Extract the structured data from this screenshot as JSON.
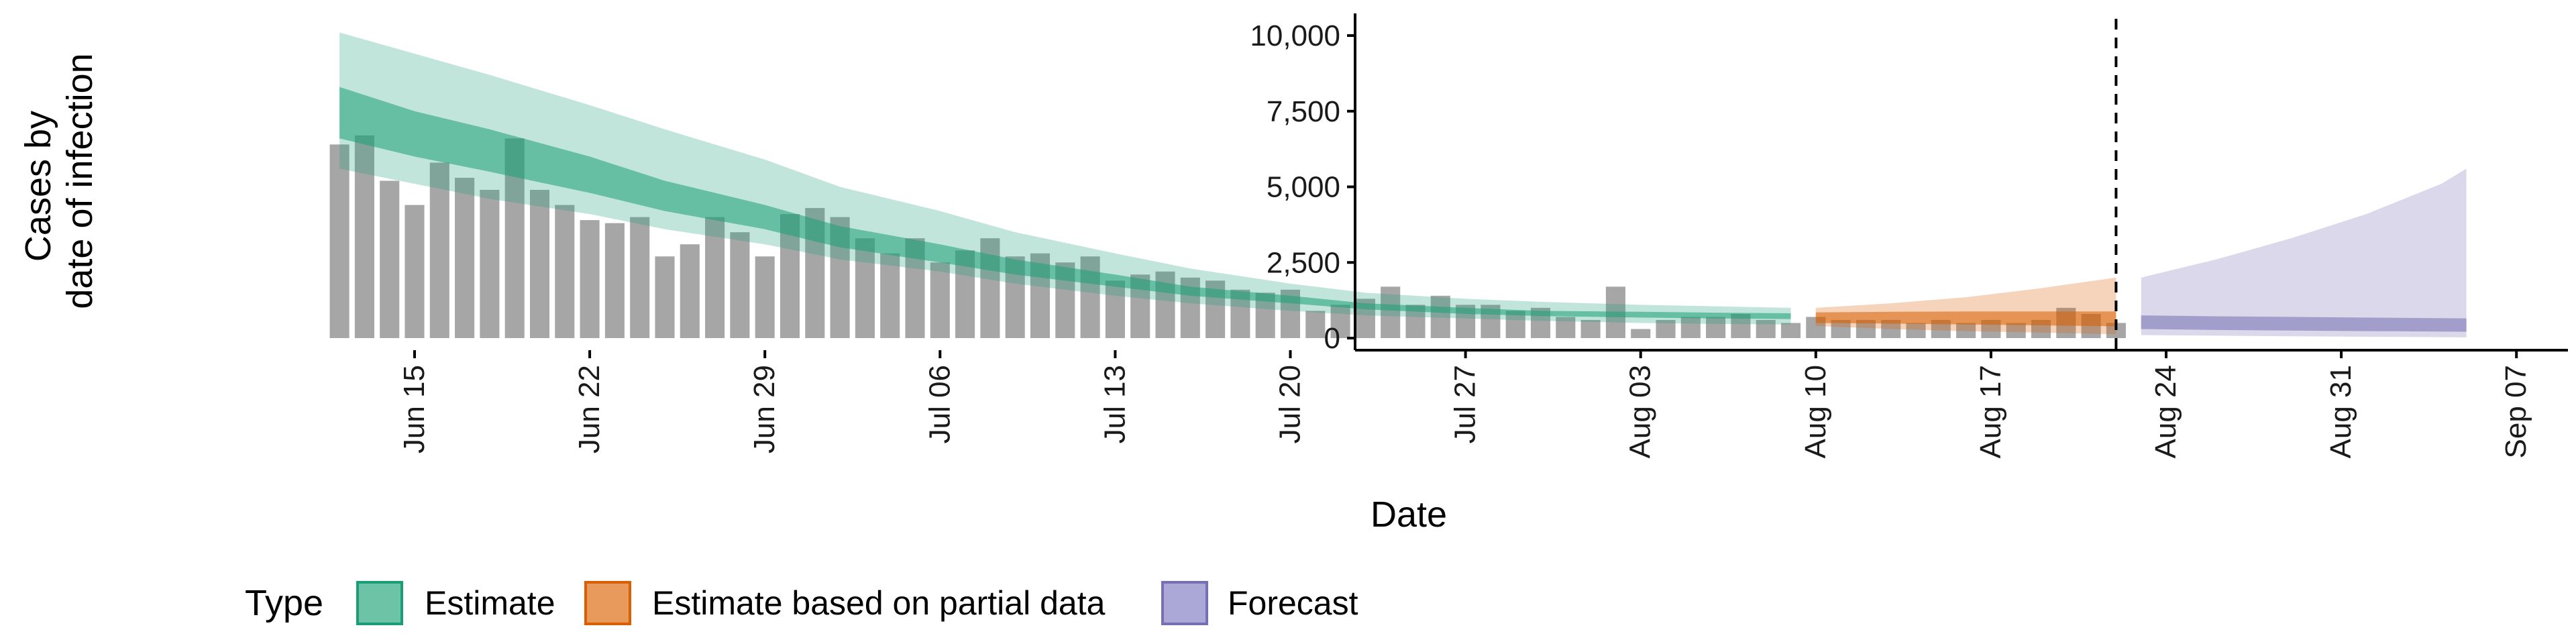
{
  "chart_data": {
    "type": "area",
    "xlabel": "Date",
    "ylabel_lines": [
      "Cases by",
      "date of infection"
    ],
    "x_start": "2020-06-11",
    "ylim": [
      0,
      10500
    ],
    "y_ticks": [
      0,
      2500,
      5000,
      7500,
      10000
    ],
    "y_tick_labels": [
      "0",
      "2,500",
      "5,000",
      "7,500",
      "10,000"
    ],
    "x_ticks": [
      "2020-06-15",
      "2020-06-22",
      "2020-06-29",
      "2020-07-06",
      "2020-07-13",
      "2020-07-20",
      "2020-07-27",
      "2020-08-03",
      "2020-08-10",
      "2020-08-17",
      "2020-08-24",
      "2020-08-31",
      "2020-09-07"
    ],
    "x_tick_labels": [
      "Jun 15",
      "Jun 22",
      "Jun 29",
      "Jul 06",
      "Jul 13",
      "Jul 20",
      "Jul 27",
      "Aug 03",
      "Aug 10",
      "Aug 17",
      "Aug 24",
      "Aug 31",
      "Sep 07"
    ],
    "vline_date": "2020-08-22",
    "legend": {
      "title": "Type",
      "items": [
        {
          "label": "Estimate",
          "fill": "#6cc3a6",
          "stroke": "#1b9e77"
        },
        {
          "label": "Estimate based on partial data",
          "fill": "#e89a5c",
          "stroke": "#d95f02"
        },
        {
          "label": "Forecast",
          "fill": "#aba8d8",
          "stroke": "#7570b3"
        }
      ]
    },
    "bars": {
      "color": "#a6a6a6",
      "dates": [
        "2020-06-12",
        "2020-06-13",
        "2020-06-14",
        "2020-06-15",
        "2020-06-16",
        "2020-06-17",
        "2020-06-18",
        "2020-06-19",
        "2020-06-20",
        "2020-06-21",
        "2020-06-22",
        "2020-06-23",
        "2020-06-24",
        "2020-06-25",
        "2020-06-26",
        "2020-06-27",
        "2020-06-28",
        "2020-06-29",
        "2020-06-30",
        "2020-07-01",
        "2020-07-02",
        "2020-07-03",
        "2020-07-04",
        "2020-07-05",
        "2020-07-06",
        "2020-07-07",
        "2020-07-08",
        "2020-07-09",
        "2020-07-10",
        "2020-07-11",
        "2020-07-12",
        "2020-07-13",
        "2020-07-14",
        "2020-07-15",
        "2020-07-16",
        "2020-07-17",
        "2020-07-18",
        "2020-07-19",
        "2020-07-20",
        "2020-07-21",
        "2020-07-22",
        "2020-07-23",
        "2020-07-24",
        "2020-07-25",
        "2020-07-26",
        "2020-07-27",
        "2020-07-28",
        "2020-07-29",
        "2020-07-30",
        "2020-07-31",
        "2020-08-01",
        "2020-08-02",
        "2020-08-03",
        "2020-08-04",
        "2020-08-05",
        "2020-08-06",
        "2020-08-07",
        "2020-08-08",
        "2020-08-09",
        "2020-08-10",
        "2020-08-11",
        "2020-08-12",
        "2020-08-13",
        "2020-08-14",
        "2020-08-15",
        "2020-08-16",
        "2020-08-17",
        "2020-08-18",
        "2020-08-19",
        "2020-08-20",
        "2020-08-21",
        "2020-08-22"
      ],
      "values": [
        6400,
        6700,
        5200,
        4400,
        5800,
        5300,
        4900,
        6600,
        4900,
        4400,
        3900,
        3800,
        4000,
        2700,
        3100,
        4000,
        3500,
        2700,
        4100,
        4300,
        4000,
        3300,
        2800,
        3300,
        2500,
        2900,
        3300,
        2700,
        2800,
        2500,
        2700,
        1900,
        2100,
        2200,
        2000,
        1900,
        1600,
        1500,
        1600,
        900,
        1100,
        1300,
        1700,
        1100,
        1400,
        1100,
        1100,
        900,
        1000,
        700,
        600,
        1700,
        300,
        600,
        700,
        700,
        800,
        600,
        500,
        700,
        600,
        600,
        600,
        500,
        600,
        500,
        600,
        500,
        600,
        1000,
        800,
        500
      ]
    },
    "series": [
      {
        "name": "Estimate",
        "fill": "#1b9e77",
        "x": [
          "2020-06-12",
          "2020-06-15",
          "2020-06-18",
          "2020-06-22",
          "2020-06-25",
          "2020-06-29",
          "2020-07-02",
          "2020-07-06",
          "2020-07-09",
          "2020-07-13",
          "2020-07-16",
          "2020-07-20",
          "2020-07-23",
          "2020-07-27",
          "2020-07-30",
          "2020-08-03",
          "2020-08-06",
          "2020-08-09"
        ],
        "outer_upper": [
          10100,
          9400,
          8700,
          7700,
          6900,
          5900,
          5000,
          4200,
          3500,
          2800,
          2300,
          1800,
          1500,
          1300,
          1200,
          1100,
          1050,
          1000
        ],
        "outer_lower": [
          5600,
          5100,
          4600,
          4100,
          3600,
          3100,
          2600,
          2200,
          1800,
          1400,
          1150,
          900,
          750,
          650,
          570,
          500,
          470,
          450
        ],
        "inner_upper": [
          8300,
          7500,
          6900,
          6000,
          5200,
          4400,
          3700,
          3100,
          2600,
          2100,
          1700,
          1400,
          1150,
          1000,
          900,
          870,
          840,
          820
        ],
        "inner_lower": [
          6600,
          6000,
          5500,
          4800,
          4200,
          3600,
          3000,
          2500,
          2100,
          1700,
          1400,
          1150,
          950,
          800,
          730,
          680,
          650,
          630
        ]
      },
      {
        "name": "Estimate based on partial data",
        "fill": "#d95f02",
        "x": [
          "2020-08-10",
          "2020-08-13",
          "2020-08-16",
          "2020-08-19",
          "2020-08-22"
        ],
        "outer_upper": [
          1000,
          1150,
          1350,
          1650,
          2000
        ],
        "outer_lower": [
          400,
          300,
          230,
          180,
          130
        ],
        "inner_upper": [
          850,
          870,
          880,
          880,
          880
        ],
        "inner_lower": [
          500,
          480,
          450,
          420,
          390
        ]
      },
      {
        "name": "Forecast",
        "fill": "#7570b3",
        "x": [
          "2020-08-23",
          "2020-08-26",
          "2020-08-29",
          "2020-09-01",
          "2020-09-04",
          "2020-09-05"
        ],
        "outer_upper": [
          2000,
          2600,
          3300,
          4100,
          5100,
          5600
        ],
        "outer_lower": [
          100,
          80,
          60,
          45,
          30,
          25
        ],
        "inner_upper": [
          750,
          720,
          700,
          680,
          660,
          650
        ],
        "inner_lower": [
          300,
          270,
          250,
          230,
          215,
          210
        ]
      }
    ]
  }
}
